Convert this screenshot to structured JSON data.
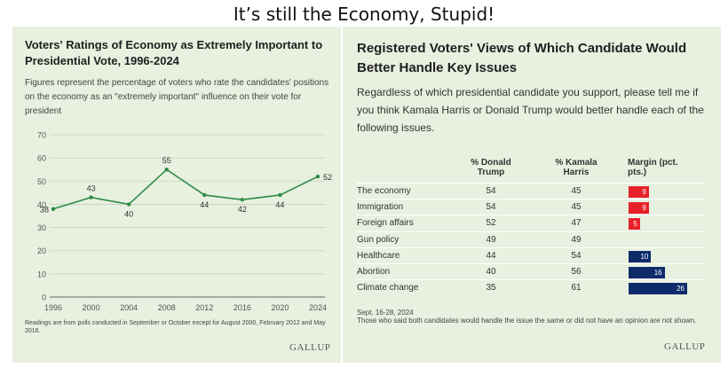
{
  "slide": {
    "title": "It’s still the Economy, Stupid!"
  },
  "left_panel": {
    "title": "Voters' Ratings of Economy as Extremely Important to Presidential Vote, 1996-2024",
    "subtitle": "Figures represent the percentage of voters who rate the candidates' positions on the economy as an \"extremely important\" influence on their vote for president",
    "note": "Readings are from polls conducted in September or October except for August 2000, February 2012 and May 2016.",
    "logo": "GALLUP"
  },
  "chart_data": [
    {
      "type": "line",
      "x": [
        1996,
        2000,
        2004,
        2008,
        2012,
        2016,
        2020,
        2024
      ],
      "series": [
        {
          "values": [
            38,
            43,
            40,
            55,
            44,
            42,
            44,
            52
          ]
        }
      ],
      "xticks": [
        "1996",
        "2000",
        "2004",
        "2008",
        "2012",
        "2016",
        "2020",
        "2024"
      ],
      "yticks": [
        0,
        10,
        20,
        30,
        40,
        50,
        60,
        70
      ],
      "ylim": [
        0,
        70
      ],
      "xlim": [
        1996,
        2024
      ],
      "grid": true,
      "line_color": "#2e8b46"
    },
    {
      "type": "table",
      "columns": [
        "% Donald Trump",
        "% Kamala Harris",
        "Margin (pct. pts.)"
      ],
      "rows": [
        {
          "issue": "The economy",
          "trump": 54,
          "harris": 45,
          "margin": 9,
          "leader": "trump"
        },
        {
          "issue": "Immigration",
          "trump": 54,
          "harris": 45,
          "margin": 9,
          "leader": "trump"
        },
        {
          "issue": "Foreign affairs",
          "trump": 52,
          "harris": 47,
          "margin": 5,
          "leader": "trump"
        },
        {
          "issue": "Gun policy",
          "trump": 49,
          "harris": 49,
          "margin": 0,
          "leader": "tie"
        },
        {
          "issue": "Healthcare",
          "trump": 44,
          "harris": 54,
          "margin": 10,
          "leader": "harris"
        },
        {
          "issue": "Abortion",
          "trump": 40,
          "harris": 56,
          "margin": 16,
          "leader": "harris"
        },
        {
          "issue": "Climate change",
          "trump": 35,
          "harris": 61,
          "margin": 26,
          "leader": "harris"
        }
      ],
      "colors": {
        "trump": "#e8202a",
        "harris": "#0d2b6b"
      }
    }
  ],
  "right_panel": {
    "title": "Registered Voters' Views of Which Candidate Would Better Handle Key Issues",
    "question": "Regardless of which presidential candidate you support, please tell me if you think Kamala Harris or Donald Trump would better handle each of the following issues.",
    "header_trump": "% Donald Trump",
    "header_harris": "% Kamala Harris",
    "header_margin": "Margin (pct. pts.)",
    "date": "Sept. 16-28, 2024",
    "note": "Those who said both candidates would handle the issue the same or did not have an opinion are not shown.",
    "logo": "GALLUP"
  }
}
